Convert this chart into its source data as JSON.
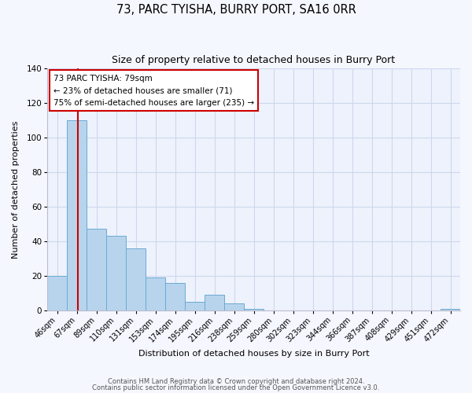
{
  "title": "73, PARC TYISHA, BURRY PORT, SA16 0RR",
  "subtitle": "Size of property relative to detached houses in Burry Port",
  "xlabel": "Distribution of detached houses by size in Burry Port",
  "ylabel": "Number of detached properties",
  "bar_color": "#b8d4ed",
  "bar_edge_color": "#6aaad4",
  "bin_labels": [
    "46sqm",
    "67sqm",
    "89sqm",
    "110sqm",
    "131sqm",
    "153sqm",
    "174sqm",
    "195sqm",
    "216sqm",
    "238sqm",
    "259sqm",
    "280sqm",
    "302sqm",
    "323sqm",
    "344sqm",
    "366sqm",
    "387sqm",
    "408sqm",
    "429sqm",
    "451sqm",
    "472sqm"
  ],
  "bar_heights": [
    20,
    110,
    47,
    43,
    36,
    19,
    16,
    5,
    9,
    4,
    1,
    0,
    0,
    0,
    0,
    0,
    0,
    0,
    0,
    0,
    1
  ],
  "ylim": [
    0,
    140
  ],
  "yticks": [
    0,
    20,
    40,
    60,
    80,
    100,
    120,
    140
  ],
  "annotation_title": "73 PARC TYISHA: 79sqm",
  "annotation_line1": "← 23% of detached houses are smaller (71)",
  "annotation_line2": "75% of semi-detached houses are larger (235) →",
  "red_line_color": "#cc0000",
  "background_color": "#eef2fc",
  "fig_background_color": "#f5f7ff",
  "grid_color": "#ccd8ee",
  "footer1": "Contains HM Land Registry data © Crown copyright and database right 2024.",
  "footer2": "Contains public sector information licensed under the Open Government Licence v3.0.",
  "title_fontsize": 10.5,
  "subtitle_fontsize": 9,
  "axis_label_fontsize": 8,
  "tick_fontsize": 7,
  "annotation_fontsize": 7.5,
  "footer_fontsize": 6
}
